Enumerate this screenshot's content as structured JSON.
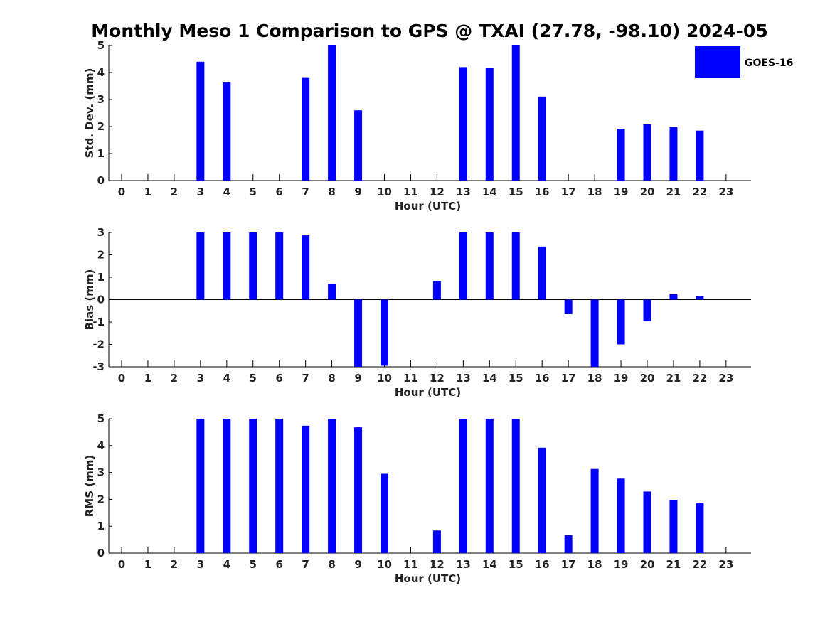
{
  "title": "Monthly Meso 1 Comparison to GPS @ TXAI (27.78, -98.10) 2024-05",
  "legend": {
    "label": "GOES-16",
    "color": "#0000ff",
    "placement": "top-right"
  },
  "chart_data": [
    {
      "type": "bar",
      "name": "std-dev",
      "xlabel": "Hour (UTC)",
      "ylabel": "Std. Dev. (mm)",
      "ylim": [
        0,
        5
      ],
      "yticks": [
        "0",
        "1",
        "2",
        "3",
        "4",
        "5"
      ],
      "categories": [
        "0",
        "1",
        "2",
        "3",
        "4",
        "5",
        "6",
        "7",
        "8",
        "9",
        "10",
        "11",
        "12",
        "13",
        "14",
        "15",
        "16",
        "17",
        "18",
        "19",
        "20",
        "21",
        "22",
        "23"
      ],
      "series": [
        {
          "name": "GOES-16",
          "color": "#0000ff",
          "values": [
            null,
            null,
            null,
            4.4,
            3.63,
            null,
            null,
            3.8,
            5.0,
            2.6,
            null,
            null,
            null,
            4.2,
            4.16,
            5.0,
            3.11,
            null,
            null,
            1.92,
            2.08,
            1.98,
            1.85,
            null
          ]
        }
      ]
    },
    {
      "type": "bar",
      "name": "bias",
      "xlabel": "Hour (UTC)",
      "ylabel": "Bias (mm)",
      "ylim": [
        -3,
        3
      ],
      "yticks": [
        "-3",
        "-2",
        "-1",
        "0",
        "1",
        "2",
        "3"
      ],
      "categories": [
        "0",
        "1",
        "2",
        "3",
        "4",
        "5",
        "6",
        "7",
        "8",
        "9",
        "10",
        "11",
        "12",
        "13",
        "14",
        "15",
        "16",
        "17",
        "18",
        "19",
        "20",
        "21",
        "22",
        "23"
      ],
      "series": [
        {
          "name": "GOES-16",
          "color": "#0000ff",
          "values": [
            null,
            null,
            null,
            3.0,
            3.0,
            3.0,
            3.0,
            2.87,
            0.7,
            -3.0,
            -2.95,
            null,
            0.83,
            3.0,
            3.0,
            3.0,
            2.37,
            -0.65,
            -3.0,
            -2.0,
            -0.97,
            0.24,
            0.15,
            null
          ]
        }
      ]
    },
    {
      "type": "bar",
      "name": "rms",
      "xlabel": "Hour (UTC)",
      "ylabel": "RMS (mm)",
      "ylim": [
        0,
        5
      ],
      "yticks": [
        "0",
        "1",
        "2",
        "3",
        "4",
        "5"
      ],
      "categories": [
        "0",
        "1",
        "2",
        "3",
        "4",
        "5",
        "6",
        "7",
        "8",
        "9",
        "10",
        "11",
        "12",
        "13",
        "14",
        "15",
        "16",
        "17",
        "18",
        "19",
        "20",
        "21",
        "22",
        "23"
      ],
      "series": [
        {
          "name": "GOES-16",
          "color": "#0000ff",
          "values": [
            null,
            null,
            null,
            5.0,
            5.0,
            5.0,
            5.0,
            4.74,
            5.0,
            4.68,
            2.95,
            null,
            0.84,
            5.0,
            5.0,
            5.0,
            3.92,
            0.66,
            3.13,
            2.77,
            2.29,
            1.98,
            1.85,
            null
          ]
        }
      ]
    }
  ]
}
